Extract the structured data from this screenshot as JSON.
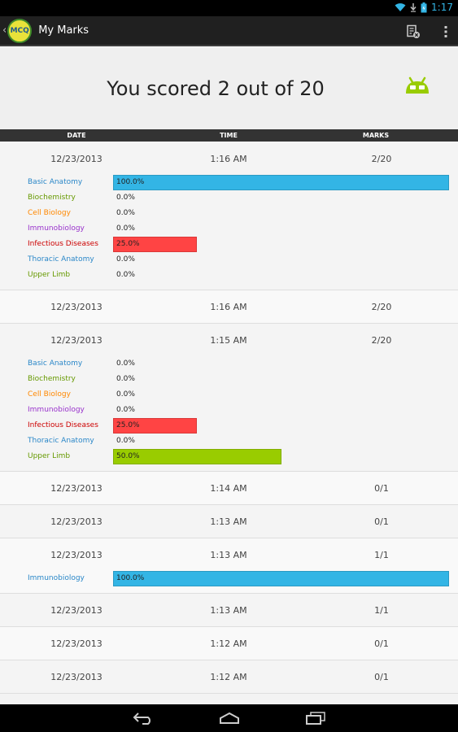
{
  "status_bar": {
    "time": "1:17"
  },
  "action_bar": {
    "logo_text": "MCQ",
    "title": "My Marks"
  },
  "score": {
    "text": "You scored 2 out of 20"
  },
  "columns": {
    "date": "DATE",
    "time": "TIME",
    "marks": "MARKS"
  },
  "colors": {
    "blue": "#33b5e5",
    "red": "#ff4444",
    "green": "#99cc00",
    "subject_blue": "#2a87c8",
    "subject_green": "#669900",
    "subject_orange": "#ff8800",
    "subject_purple": "#9933cc",
    "subject_red": "#cc0000"
  },
  "rows": [
    {
      "date": "12/23/2013",
      "time": "1:16 AM",
      "marks": "2/20",
      "subjects": [
        {
          "name": "Basic Anatomy",
          "value": "100.0%",
          "fraction": 1.0,
          "name_color": "subject_blue",
          "bar_color": "blue"
        },
        {
          "name": "Biochemistry",
          "value": "0.0%",
          "fraction": 0,
          "name_color": "subject_green",
          "bar_color": ""
        },
        {
          "name": "Cell Biology",
          "value": "0.0%",
          "fraction": 0,
          "name_color": "subject_orange",
          "bar_color": ""
        },
        {
          "name": "Immunobiology",
          "value": "0.0%",
          "fraction": 0,
          "name_color": "subject_purple",
          "bar_color": ""
        },
        {
          "name": "Infectious Diseases",
          "value": "25.0%",
          "fraction": 0.25,
          "name_color": "subject_red",
          "bar_color": "red"
        },
        {
          "name": "Thoracic Anatomy",
          "value": "0.0%",
          "fraction": 0,
          "name_color": "subject_blue",
          "bar_color": ""
        },
        {
          "name": "Upper Limb",
          "value": "0.0%",
          "fraction": 0,
          "name_color": "subject_green",
          "bar_color": ""
        }
      ]
    },
    {
      "date": "12/23/2013",
      "time": "1:16 AM",
      "marks": "2/20",
      "subjects": []
    },
    {
      "date": "12/23/2013",
      "time": "1:15 AM",
      "marks": "2/20",
      "subjects": [
        {
          "name": "Basic Anatomy",
          "value": "0.0%",
          "fraction": 0,
          "name_color": "subject_blue",
          "bar_color": ""
        },
        {
          "name": "Biochemistry",
          "value": "0.0%",
          "fraction": 0,
          "name_color": "subject_green",
          "bar_color": ""
        },
        {
          "name": "Cell Biology",
          "value": "0.0%",
          "fraction": 0,
          "name_color": "subject_orange",
          "bar_color": ""
        },
        {
          "name": "Immunobiology",
          "value": "0.0%",
          "fraction": 0,
          "name_color": "subject_purple",
          "bar_color": ""
        },
        {
          "name": "Infectious Diseases",
          "value": "25.0%",
          "fraction": 0.25,
          "name_color": "subject_red",
          "bar_color": "red"
        },
        {
          "name": "Thoracic Anatomy",
          "value": "0.0%",
          "fraction": 0,
          "name_color": "subject_blue",
          "bar_color": ""
        },
        {
          "name": "Upper Limb",
          "value": "50.0%",
          "fraction": 0.5,
          "name_color": "subject_green",
          "bar_color": "green"
        }
      ]
    },
    {
      "date": "12/23/2013",
      "time": "1:14 AM",
      "marks": "0/1",
      "subjects": []
    },
    {
      "date": "12/23/2013",
      "time": "1:13 AM",
      "marks": "0/1",
      "subjects": []
    },
    {
      "date": "12/23/2013",
      "time": "1:13 AM",
      "marks": "1/1",
      "subjects": [
        {
          "name": "Immunobiology",
          "value": "100.0%",
          "fraction": 1.0,
          "name_color": "subject_blue",
          "bar_color": "blue"
        }
      ]
    },
    {
      "date": "12/23/2013",
      "time": "1:13 AM",
      "marks": "1/1",
      "subjects": []
    },
    {
      "date": "12/23/2013",
      "time": "1:12 AM",
      "marks": "0/1",
      "subjects": []
    },
    {
      "date": "12/23/2013",
      "time": "1:12 AM",
      "marks": "0/1",
      "subjects": []
    }
  ]
}
